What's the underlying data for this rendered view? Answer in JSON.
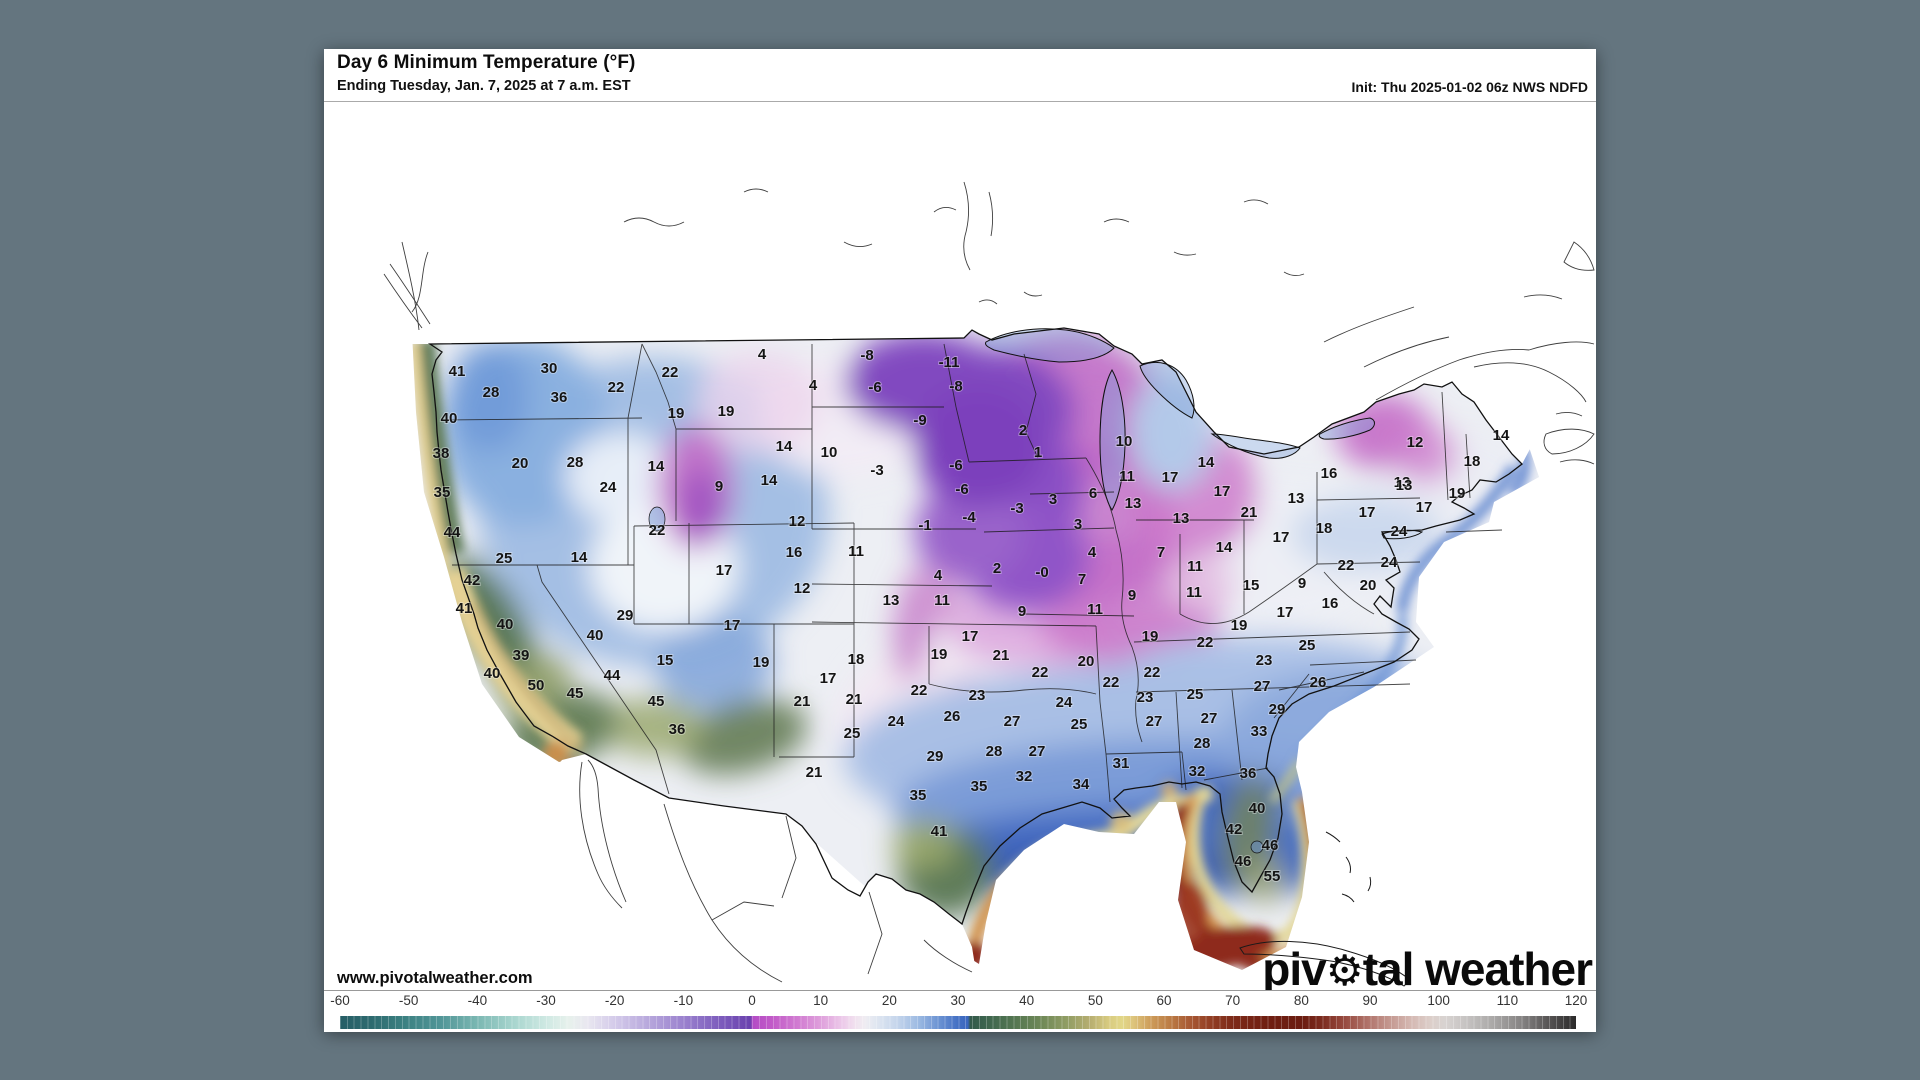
{
  "header": {
    "title": "Day 6 Minimum Temperature (°F)",
    "subtitle": "Ending Tuesday, Jan. 7, 2025 at 7 a.m. EST",
    "init": "Init: Thu 2025-01-02 06z NWS NDFD"
  },
  "map": {
    "url_label": "www.pivotalweather.com",
    "watermark": {
      "prefix": "piv",
      "gear": "⚙",
      "suffix": "tal weather"
    },
    "stations": [
      [
        "41",
        133,
        269
      ],
      [
        "30",
        225,
        266
      ],
      [
        "28",
        167,
        290
      ],
      [
        "36",
        235,
        295
      ],
      [
        "22",
        292,
        285
      ],
      [
        "22",
        346,
        270
      ],
      [
        "19",
        352,
        311
      ],
      [
        "19",
        402,
        309
      ],
      [
        "40",
        125,
        316
      ],
      [
        "38",
        117,
        351
      ],
      [
        "20",
        196,
        361
      ],
      [
        "28",
        251,
        360
      ],
      [
        "14",
        332,
        364
      ],
      [
        "24",
        284,
        385
      ],
      [
        "9",
        395,
        384
      ],
      [
        "35",
        118,
        390
      ],
      [
        "22",
        333,
        428
      ],
      [
        "44",
        128,
        430
      ],
      [
        "25",
        180,
        456
      ],
      [
        "14",
        255,
        455
      ],
      [
        "12",
        473,
        419
      ],
      [
        "16",
        470,
        450
      ],
      [
        "17",
        400,
        468
      ],
      [
        "17",
        408,
        523
      ],
      [
        "42",
        148,
        478
      ],
      [
        "41",
        140,
        506
      ],
      [
        "40",
        181,
        522
      ],
      [
        "29",
        301,
        513
      ],
      [
        "39",
        197,
        553
      ],
      [
        "40",
        271,
        533
      ],
      [
        "40",
        168,
        571
      ],
      [
        "50",
        212,
        583
      ],
      [
        "44",
        288,
        573
      ],
      [
        "45",
        251,
        591
      ],
      [
        "45",
        332,
        599
      ],
      [
        "36",
        353,
        627
      ],
      [
        "15",
        341,
        558
      ],
      [
        "19",
        437,
        560
      ],
      [
        "17",
        504,
        576
      ],
      [
        "4",
        438,
        252
      ],
      [
        "-8",
        543,
        253
      ],
      [
        "-11",
        625,
        260
      ],
      [
        "4",
        489,
        283
      ],
      [
        "-6",
        551,
        285
      ],
      [
        "-8",
        632,
        284
      ],
      [
        "-9",
        596,
        318
      ],
      [
        "-3",
        553,
        368
      ],
      [
        "-6",
        632,
        363
      ],
      [
        "-6",
        638,
        387
      ],
      [
        "2",
        699,
        328
      ],
      [
        "1",
        714,
        350
      ],
      [
        "-4",
        645,
        415
      ],
      [
        "-1",
        601,
        423
      ],
      [
        "-3",
        693,
        406
      ],
      [
        "3",
        729,
        397
      ],
      [
        "3",
        754,
        422
      ],
      [
        "6",
        769,
        391
      ],
      [
        "10",
        800,
        339
      ],
      [
        "11",
        803,
        374
      ],
      [
        "17",
        846,
        375
      ],
      [
        "13",
        809,
        401
      ],
      [
        "13",
        857,
        416
      ],
      [
        "14",
        882,
        360
      ],
      [
        "14",
        460,
        344
      ],
      [
        "10",
        505,
        350
      ],
      [
        "14",
        445,
        378
      ],
      [
        "11",
        532,
        449
      ],
      [
        "12",
        478,
        486
      ],
      [
        "4",
        614,
        473
      ],
      [
        "2",
        673,
        466
      ],
      [
        "-0",
        718,
        470
      ],
      [
        "4",
        768,
        450
      ],
      [
        "7",
        837,
        450
      ],
      [
        "13",
        567,
        498
      ],
      [
        "11",
        618,
        498
      ],
      [
        "9",
        698,
        509
      ],
      [
        "7",
        758,
        477
      ],
      [
        "11",
        771,
        507
      ],
      [
        "9",
        808,
        493
      ],
      [
        "11",
        870,
        490
      ],
      [
        "18",
        532,
        557
      ],
      [
        "19",
        615,
        552
      ],
      [
        "17",
        646,
        534
      ],
      [
        "21",
        677,
        553
      ],
      [
        "22",
        716,
        570
      ],
      [
        "20",
        762,
        559
      ],
      [
        "22",
        828,
        570
      ],
      [
        "22",
        787,
        580
      ],
      [
        "21",
        478,
        599
      ],
      [
        "21",
        530,
        597
      ],
      [
        "22",
        595,
        588
      ],
      [
        "23",
        653,
        593
      ],
      [
        "24",
        572,
        619
      ],
      [
        "26",
        628,
        614
      ],
      [
        "27",
        688,
        619
      ],
      [
        "24",
        740,
        600
      ],
      [
        "25",
        755,
        622
      ],
      [
        "23",
        821,
        595
      ],
      [
        "27",
        830,
        619
      ],
      [
        "25",
        528,
        631
      ],
      [
        "29",
        611,
        654
      ],
      [
        "28",
        670,
        649
      ],
      [
        "27",
        713,
        649
      ],
      [
        "21",
        490,
        670
      ],
      [
        "32",
        700,
        674
      ],
      [
        "35",
        594,
        693
      ],
      [
        "35",
        655,
        684
      ],
      [
        "34",
        757,
        682
      ],
      [
        "41",
        615,
        729
      ],
      [
        "17",
        898,
        389
      ],
      [
        "21",
        925,
        410
      ],
      [
        "16",
        1005,
        371
      ],
      [
        "13",
        972,
        396
      ],
      [
        "17",
        1043,
        410
      ],
      [
        "14",
        900,
        445
      ],
      [
        "17",
        957,
        435
      ],
      [
        "18",
        1000,
        426
      ],
      [
        "13",
        1078,
        380
      ],
      [
        "24",
        1075,
        429
      ],
      [
        "11",
        871,
        464
      ],
      [
        "15",
        927,
        483
      ],
      [
        "9",
        978,
        481
      ],
      [
        "22",
        1022,
        463
      ],
      [
        "24",
        1065,
        460
      ],
      [
        "20",
        1044,
        483
      ],
      [
        "16",
        1006,
        501
      ],
      [
        "17",
        961,
        510
      ],
      [
        "19",
        826,
        534
      ],
      [
        "19",
        915,
        523
      ],
      [
        "22",
        881,
        540
      ],
      [
        "25",
        983,
        543
      ],
      [
        "23",
        940,
        558
      ],
      [
        "12",
        1091,
        340
      ],
      [
        "13",
        1080,
        383
      ],
      [
        "14",
        1177,
        333
      ],
      [
        "18",
        1148,
        359
      ],
      [
        "19",
        1133,
        391
      ],
      [
        "17",
        1100,
        405
      ],
      [
        "25",
        871,
        592
      ],
      [
        "27",
        938,
        584
      ],
      [
        "26",
        994,
        580
      ],
      [
        "29",
        953,
        607
      ],
      [
        "27",
        885,
        616
      ],
      [
        "28",
        878,
        641
      ],
      [
        "31",
        797,
        661
      ],
      [
        "32",
        873,
        669
      ],
      [
        "33",
        935,
        629
      ],
      [
        "36",
        924,
        671
      ],
      [
        "40",
        933,
        706
      ],
      [
        "42",
        910,
        727
      ],
      [
        "46",
        946,
        743
      ],
      [
        "46",
        919,
        759
      ],
      [
        "55",
        948,
        774
      ]
    ]
  },
  "colorbar": {
    "min": -60,
    "max": 120,
    "ticks": [
      -60,
      -50,
      -40,
      -30,
      -20,
      -10,
      0,
      10,
      20,
      30,
      40,
      50,
      60,
      70,
      80,
      90,
      100,
      110,
      120
    ],
    "stops": [
      [
        0,
        "#265e66"
      ],
      [
        2.5,
        "#2d6a6f"
      ],
      [
        5,
        "#3a7f80"
      ],
      [
        8,
        "#4f9496"
      ],
      [
        11,
        "#79b6b1"
      ],
      [
        14,
        "#a7d5ce"
      ],
      [
        16.7,
        "#cfe9e3"
      ],
      [
        18.5,
        "#e7f1ec"
      ],
      [
        20,
        "#e9e7f0"
      ],
      [
        22.2,
        "#d4cbea"
      ],
      [
        25,
        "#b7a7dc"
      ],
      [
        27.8,
        "#9a81ce"
      ],
      [
        30.5,
        "#7f5fbe"
      ],
      [
        33.2,
        "#6a41ae"
      ],
      [
        33.4,
        "#b44cc5"
      ],
      [
        35,
        "#c25bc8"
      ],
      [
        37.2,
        "#d27ed2"
      ],
      [
        38.9,
        "#dfa0dc"
      ],
      [
        40.6,
        "#ecc8e9"
      ],
      [
        41.7,
        "#f1e2ef"
      ],
      [
        42.5,
        "#efedf2"
      ],
      [
        43.3,
        "#e1e7f1"
      ],
      [
        45,
        "#c6d6ec"
      ],
      [
        46.7,
        "#9fbce3"
      ],
      [
        48.3,
        "#6f96d4"
      ],
      [
        50,
        "#4470c4"
      ],
      [
        50.8,
        "#3a66be"
      ],
      [
        51,
        "#33594a"
      ],
      [
        52.2,
        "#3c644e"
      ],
      [
        54.4,
        "#527550"
      ],
      [
        56.7,
        "#6e8857"
      ],
      [
        58.9,
        "#929e64"
      ],
      [
        60.6,
        "#b5ad70"
      ],
      [
        62.2,
        "#d8cb80"
      ],
      [
        63.3,
        "#e2d788"
      ],
      [
        64.2,
        "#ddc47c"
      ],
      [
        65.6,
        "#cd9c5a"
      ],
      [
        67.2,
        "#bb7b44"
      ],
      [
        68.9,
        "#a65632"
      ],
      [
        70.6,
        "#903c22"
      ],
      [
        72.2,
        "#7d2a18"
      ],
      [
        75,
        "#701f12"
      ],
      [
        77.8,
        "#6b1c10"
      ],
      [
        79.4,
        "#7b2b1e"
      ],
      [
        81.1,
        "#95473c"
      ],
      [
        83.3,
        "#b2766d"
      ],
      [
        85,
        "#c59a92"
      ],
      [
        86.7,
        "#d5b9b3"
      ],
      [
        88.3,
        "#dccfca"
      ],
      [
        89.4,
        "#d8d3d1"
      ],
      [
        91.1,
        "#c6c3c2"
      ],
      [
        93.3,
        "#aaa8a7"
      ],
      [
        95.6,
        "#858383"
      ],
      [
        97.8,
        "#565454"
      ],
      [
        100,
        "#2b2a2a"
      ]
    ]
  }
}
